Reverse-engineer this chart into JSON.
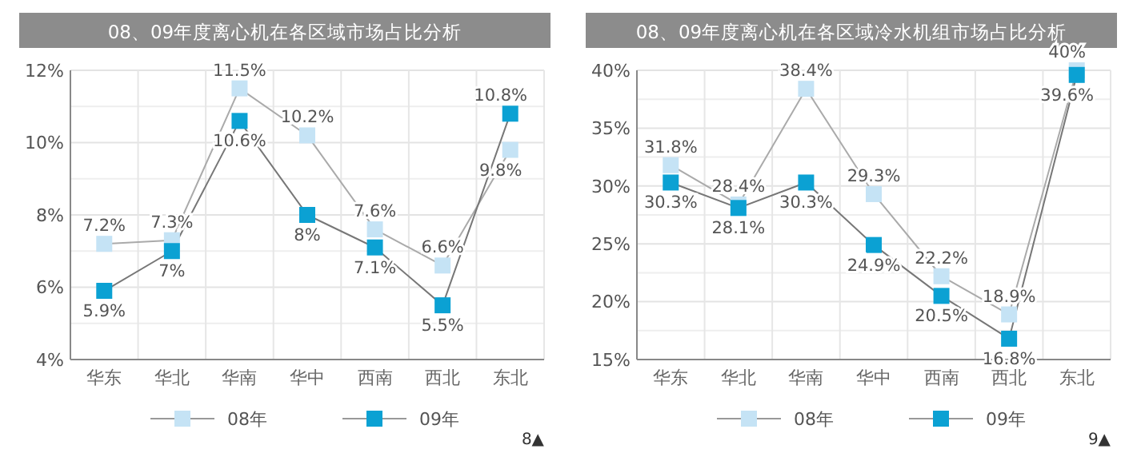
{
  "chart_data": [
    {
      "type": "line",
      "title": "08、09年度离心机在各区域市场占比分析",
      "categories": [
        "华东",
        "华北",
        "华南",
        "华中",
        "西南",
        "西北",
        "东北"
      ],
      "series": [
        {
          "name": "08年",
          "color": "#c5e3f5",
          "values": [
            7.2,
            7.3,
            11.5,
            10.2,
            7.6,
            6.6,
            9.8
          ],
          "value_labels": [
            "7.2%",
            "7.3%",
            "11.5%",
            "10.2%",
            "7.6%",
            "6.6%",
            "9.8%"
          ]
        },
        {
          "name": "09年",
          "color": "#0ba1d3",
          "values": [
            5.9,
            7,
            10.6,
            8,
            7.1,
            5.5,
            10.8
          ],
          "value_labels": [
            "5.9%",
            "7%",
            "10.6%",
            "8%",
            "7.1%",
            "5.5%",
            "10.8%"
          ]
        }
      ],
      "ylim": [
        4,
        12
      ],
      "yticks": [
        {
          "value": 4,
          "label": "4%"
        },
        {
          "value": 6,
          "label": "6%"
        },
        {
          "value": 8,
          "label": "8%"
        },
        {
          "value": 10,
          "label": "10%"
        },
        {
          "value": 12,
          "label": "12%"
        }
      ],
      "grid": true,
      "marker": "square",
      "legend": "bottom",
      "annotations": [
        "8▲"
      ]
    },
    {
      "type": "line",
      "title": "08、09年度离心机在各区域冷水机组市场占比分析",
      "categories": [
        "华东",
        "华北",
        "华南",
        "华中",
        "西南",
        "西北",
        "东北"
      ],
      "series": [
        {
          "name": "08年",
          "color": "#c5e3f5",
          "values": [
            31.8,
            28.4,
            38.4,
            29.3,
            22.2,
            18.9,
            40
          ],
          "value_labels": [
            "31.8%",
            "28.4%",
            "38.4%",
            "29.3%",
            "22.2%",
            "18.9%",
            "40%"
          ]
        },
        {
          "name": "09年",
          "color": "#0ba1d3",
          "values": [
            30.3,
            28.1,
            30.3,
            24.9,
            20.5,
            16.8,
            39.6
          ],
          "value_labels": [
            "30.3%",
            "28.1%",
            "30.3%",
            "24.9%",
            "20.5%",
            "16.8%",
            "39.6%"
          ]
        }
      ],
      "ylim": [
        15,
        40
      ],
      "yticks": [
        {
          "value": 15,
          "label": "15%"
        },
        {
          "value": 20,
          "label": "20%"
        },
        {
          "value": 25,
          "label": "25%"
        },
        {
          "value": 30,
          "label": "30%"
        },
        {
          "value": 35,
          "label": "35%"
        },
        {
          "value": 40,
          "label": "40%"
        }
      ],
      "grid": true,
      "marker": "square",
      "legend": "bottom",
      "annotations": [
        "9▲"
      ]
    }
  ]
}
